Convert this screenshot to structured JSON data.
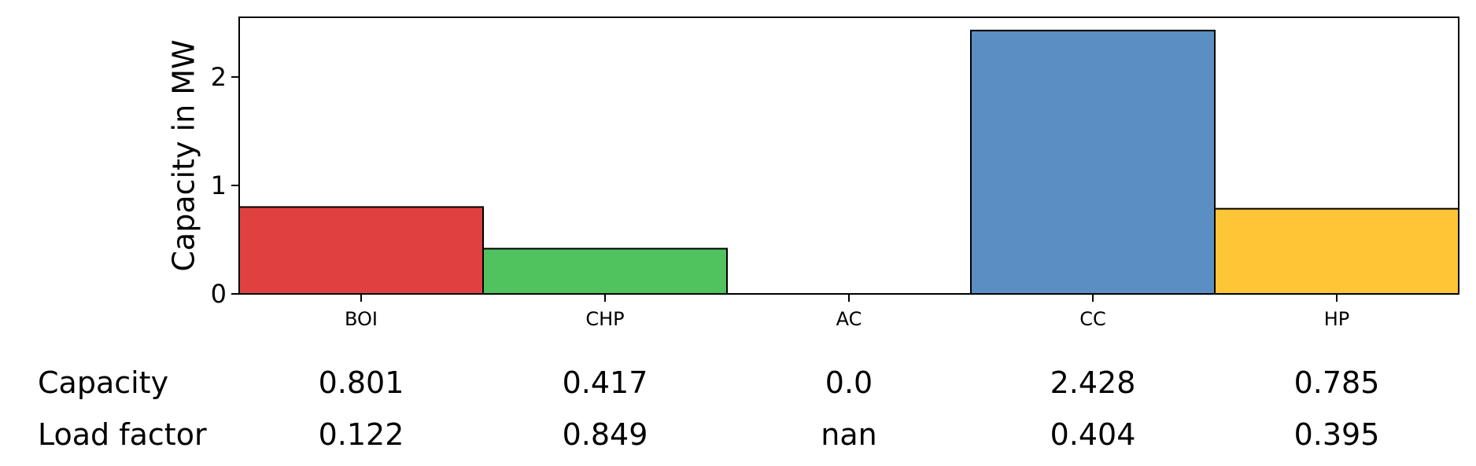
{
  "chart_data": {
    "type": "bar",
    "title": "",
    "xlabel": "",
    "ylabel": "Capacity in MW",
    "ylim": [
      0,
      2.55
    ],
    "yticks": [
      "0",
      "1",
      "2"
    ],
    "grid": false,
    "categories": [
      "BOI",
      "CHP",
      "AC",
      "CC",
      "HP"
    ],
    "values": [
      0.801,
      0.417,
      0.0,
      2.428,
      0.785
    ],
    "colors": [
      "#e04040",
      "#50c25e",
      "#d9d9d9",
      "#5b8fc4",
      "#fec536"
    ]
  },
  "table": {
    "rows": [
      {
        "label": "Capacity",
        "cells": [
          "0.801",
          "0.417",
          "0.0",
          "2.428",
          "0.785"
        ]
      },
      {
        "label": "Load factor",
        "cells": [
          "0.122",
          "0.849",
          "nan",
          "0.404",
          "0.395"
        ]
      }
    ]
  }
}
